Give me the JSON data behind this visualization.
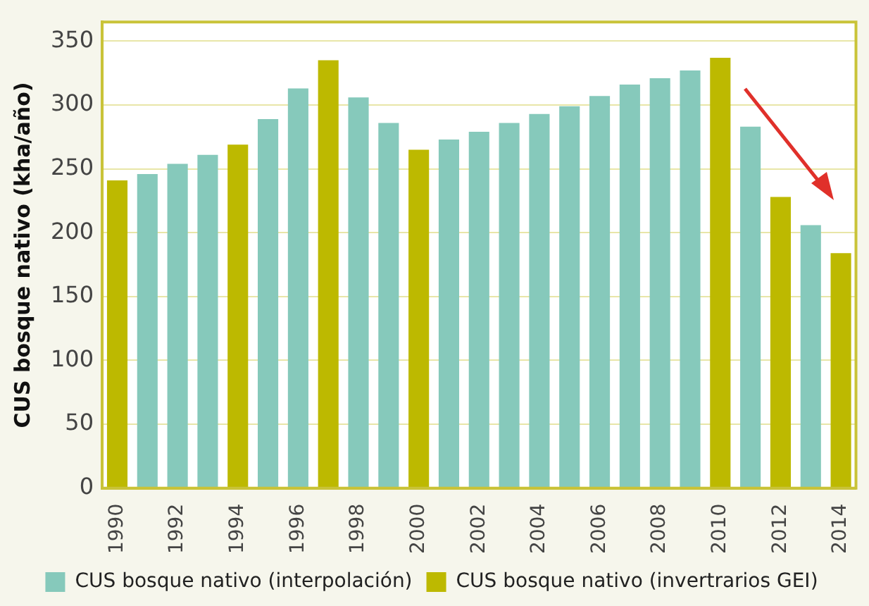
{
  "chart_data": {
    "type": "bar",
    "ylabel": "CUS bosque nativo (kha/año)",
    "categories": [
      "1990",
      null,
      "1992",
      null,
      "1994",
      null,
      "1996",
      null,
      "1998",
      null,
      "2000",
      null,
      "2002",
      null,
      "2004",
      null,
      "2006",
      null,
      "2008",
      null,
      "2010",
      null,
      "2012",
      null,
      "2014"
    ],
    "series": [
      {
        "name": "CUS bosque nativo (interpolación)",
        "color": "#86c9bb",
        "values": [
          null,
          246,
          254,
          261,
          null,
          289,
          313,
          null,
          306,
          286,
          null,
          273,
          279,
          286,
          293,
          299,
          307,
          316,
          321,
          327,
          null,
          283,
          null,
          206,
          null
        ]
      },
      {
        "name": "CUS bosque nativo (invertrarios GEI)",
        "color": "#bdb900",
        "values": [
          241,
          null,
          null,
          null,
          269,
          null,
          null,
          335,
          null,
          null,
          265,
          null,
          null,
          null,
          null,
          null,
          null,
          null,
          null,
          null,
          337,
          null,
          228,
          null,
          184
        ]
      }
    ],
    "ylim": [
      0,
      365
    ],
    "yticks": [
      0,
      50,
      100,
      150,
      200,
      250,
      300,
      350
    ],
    "grid": "y",
    "legend": "bottom"
  }
}
